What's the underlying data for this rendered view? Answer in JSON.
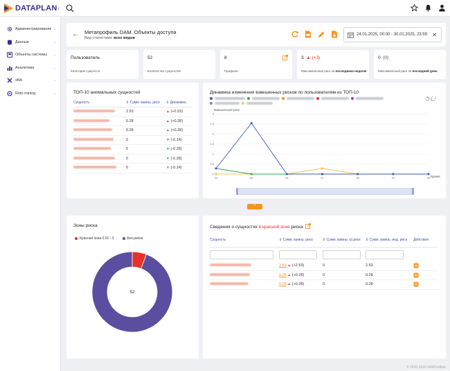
{
  "app": {
    "logo_text": "DATAPLAN"
  },
  "sidebar": {
    "items": [
      {
        "label": "Администрирование",
        "icon": "gear-icon"
      },
      {
        "label": "Данные",
        "icon": "database-icon"
      },
      {
        "label": "Объекты системы",
        "icon": "objects-icon"
      },
      {
        "label": "Аналитика",
        "icon": "bar-chart-icon"
      },
      {
        "label": "xBA",
        "icon": "xba-icon"
      },
      {
        "label": "Roto mining",
        "icon": "mining-icon"
      }
    ]
  },
  "header": {
    "title": "Метапрофиль DAM. Объекты доступа",
    "subtitle_prefix": "Вид статистики:",
    "subtitle_value": "всех видов",
    "date_range": "24.01.2025, 00:00 - 30.01.2025, 23:59"
  },
  "stats": [
    {
      "value": "Пользователь",
      "extra": "",
      "desc": "Категория сущности",
      "desc_bold": ""
    },
    {
      "value": "52",
      "extra": "",
      "desc": "Количество сущностей",
      "desc_bold": ""
    },
    {
      "value": "8",
      "extra": "",
      "desc": "Профили",
      "desc_bold": ""
    },
    {
      "value": "3",
      "extra": "▲ (+3)",
      "desc": "Максимальный риск за",
      "desc_bold": "последнюю неделю"
    },
    {
      "value": "0",
      "extra": "(0)",
      "desc": "Максимальный риск за",
      "desc_bold": "последний день"
    }
  ],
  "top10": {
    "title": "ТОП-10 аномальных сущностей",
    "headers": [
      "Сущность",
      "Сумм. взвеш. риск",
      "Динамика"
    ],
    "rows": [
      {
        "value": "2.53",
        "dyn": "(+2.53)",
        "dir": "up"
      },
      {
        "value": "0.28",
        "dyn": "(+0.28)",
        "dir": "up"
      },
      {
        "value": "0.28",
        "dyn": "(+0.28)",
        "dir": "up"
      },
      {
        "value": "0",
        "dyn": "(-0.14)",
        "dir": "down"
      },
      {
        "value": "0",
        "dyn": "(-0.28)",
        "dir": "down"
      },
      {
        "value": "0",
        "dyn": "(-0.28)",
        "dir": "down"
      },
      {
        "value": "0",
        "dyn": "(-0.14)",
        "dir": "down"
      }
    ]
  },
  "dynamics": {
    "title": "Динамика изменения взвешенных рисков по пользователям из ТОП-10",
    "y_label": "Взвешенный риск",
    "x_label": "Время"
  },
  "zones": {
    "title": "Зоны риска",
    "legend_red": "Красная зона 0.01 - 3",
    "legend_none": "Без риска",
    "center_value": "52"
  },
  "redzone": {
    "title_prefix": "Сведения о сущностях",
    "title_red": "в красной зоне",
    "title_suffix": "риска",
    "headers": [
      "Сущность",
      "Сумм. взвеш. риск",
      "Сумм. взвеш. гр.риск",
      "Сумм. взвеш. инд. риск",
      "Действия"
    ],
    "rows": [
      {
        "value": "2.53",
        "dyn": "(+2.53)",
        "gr": "0",
        "ind": "2.53"
      },
      {
        "value": "0.28",
        "dyn": "(+0.28)",
        "gr": "0",
        "ind": "0.28"
      },
      {
        "value": "0.28",
        "dyn": "(+0.28)",
        "gr": "0",
        "ind": "0.28"
      }
    ]
  },
  "colors": {
    "brand": "#3a2d8c",
    "accent": "#f7941d",
    "red": "#e4322b",
    "donut": "#5b4ea0"
  },
  "chart_data": [
    {
      "type": "line",
      "title": "Динамика изменения взвешенных рисков по пользователям из ТОП-10",
      "xlabel": "Время",
      "ylabel": "Взвешенный риск",
      "x": [
        "24",
        "25",
        "26",
        "27",
        "28",
        "29",
        "30"
      ],
      "ylim": [
        0,
        3
      ],
      "yticks": [
        "0",
        "0.5",
        "1",
        "1.5",
        "2",
        "2.5",
        "3"
      ],
      "series": [
        {
          "color": "#3b5bb5",
          "values": [
            0.28,
            2.53,
            0,
            0,
            0,
            0,
            0
          ]
        },
        {
          "color": "#2fa84f",
          "values": [
            0.28,
            0,
            0,
            0,
            0,
            0,
            0
          ]
        },
        {
          "color": "#f5c04a",
          "values": [
            0,
            0,
            0,
            0.28,
            0,
            0,
            0
          ]
        },
        {
          "color": "#f7941d",
          "values": [
            0,
            0,
            0,
            0,
            0,
            0,
            0
          ]
        },
        {
          "color": "#d6d85a",
          "values": [
            0,
            0,
            0,
            0,
            0,
            0,
            0
          ]
        }
      ]
    },
    {
      "type": "pie",
      "title": "Зоны риска",
      "categories": [
        "Красная зона 0.01 - 3",
        "Без риска"
      ],
      "values": [
        3,
        49
      ],
      "colors": [
        "#e4322b",
        "#5b4ea0"
      ]
    }
  ],
  "footer": "© 2020-2026 NGRSoftlab"
}
